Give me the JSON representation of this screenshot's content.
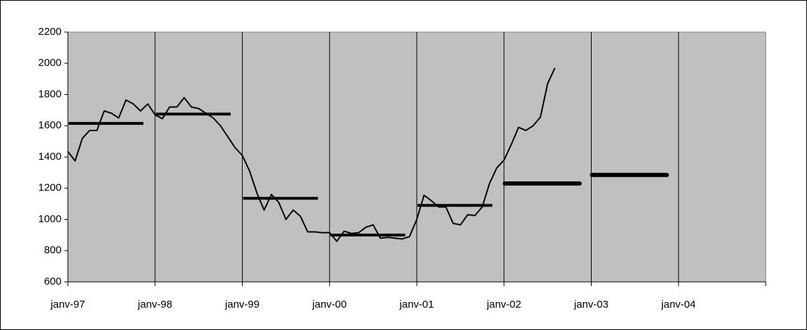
{
  "chart_data": {
    "type": "line",
    "x": [
      "1997-01",
      "1997-02",
      "1997-03",
      "1997-04",
      "1997-05",
      "1997-06",
      "1997-07",
      "1997-08",
      "1997-09",
      "1997-10",
      "1997-11",
      "1997-12",
      "1998-01",
      "1998-02",
      "1998-03",
      "1998-04",
      "1998-05",
      "1998-06",
      "1998-07",
      "1998-08",
      "1998-09",
      "1998-10",
      "1998-11",
      "1998-12",
      "1999-01",
      "1999-02",
      "1999-03",
      "1999-04",
      "1999-05",
      "1999-06",
      "1999-07",
      "1999-08",
      "1999-09",
      "1999-10",
      "1999-11",
      "1999-12",
      "2000-01",
      "2000-02",
      "2000-03",
      "2000-04",
      "2000-05",
      "2000-06",
      "2000-07",
      "2000-08",
      "2000-09",
      "2000-10",
      "2000-11",
      "2000-12",
      "2001-01",
      "2001-02",
      "2001-03",
      "2001-04",
      "2001-05",
      "2001-06",
      "2001-07",
      "2001-08",
      "2001-09",
      "2001-10",
      "2001-11",
      "2001-12",
      "2002-01",
      "2002-02",
      "2002-03",
      "2002-04",
      "2002-05",
      "2002-06",
      "2002-07",
      "2002-08"
    ],
    "series": [
      {
        "color": "#000000",
        "values": [
          1435,
          1375,
          1520,
          1570,
          1570,
          1695,
          1680,
          1650,
          1765,
          1740,
          1695,
          1740,
          1670,
          1645,
          1720,
          1720,
          1780,
          1720,
          1710,
          1680,
          1650,
          1600,
          1530,
          1460,
          1410,
          1310,
          1170,
          1060,
          1160,
          1110,
          1000,
          1060,
          1020,
          920,
          920,
          915,
          915,
          860,
          925,
          910,
          915,
          950,
          965,
          880,
          885,
          880,
          875,
          890,
          1000,
          1155,
          1120,
          1080,
          1080,
          975,
          965,
          1030,
          1025,
          1080,
          1230,
          1330,
          1380,
          1480,
          1590,
          1570,
          1600,
          1655,
          1870,
          1970
        ]
      }
    ],
    "annual": [
      {
        "color": "#000000",
        "x": [
          "1997-01",
          "1998-01",
          "1999-01",
          "2000-01",
          "2001-01"
        ],
        "values": [
          1615,
          1675,
          1135,
          900,
          1090
        ]
      },
      {
        "color": "#000000",
        "x": [
          "2002-01",
          "2003-01"
        ],
        "values": [
          1230,
          1285
        ]
      }
    ],
    "xlim": [
      "1997-01",
      "2005-01"
    ],
    "xticks": [
      {
        "value": "1997-01",
        "label": "janv-97"
      },
      {
        "value": "1998-01",
        "label": "janv-98"
      },
      {
        "value": "1999-01",
        "label": "janv-99"
      },
      {
        "value": "2000-01",
        "label": "janv-00"
      },
      {
        "value": "2001-01",
        "label": "janv-01"
      },
      {
        "value": "2002-01",
        "label": "janv-02"
      },
      {
        "value": "2003-01",
        "label": "janv-03"
      },
      {
        "value": "2004-01",
        "label": "janv-04"
      }
    ],
    "ylim": [
      600,
      2200
    ],
    "yticks": [
      600,
      800,
      1000,
      1200,
      1400,
      1600,
      1800,
      2000,
      2200
    ],
    "grid": true,
    "plot_background": "#c0c0c0"
  }
}
